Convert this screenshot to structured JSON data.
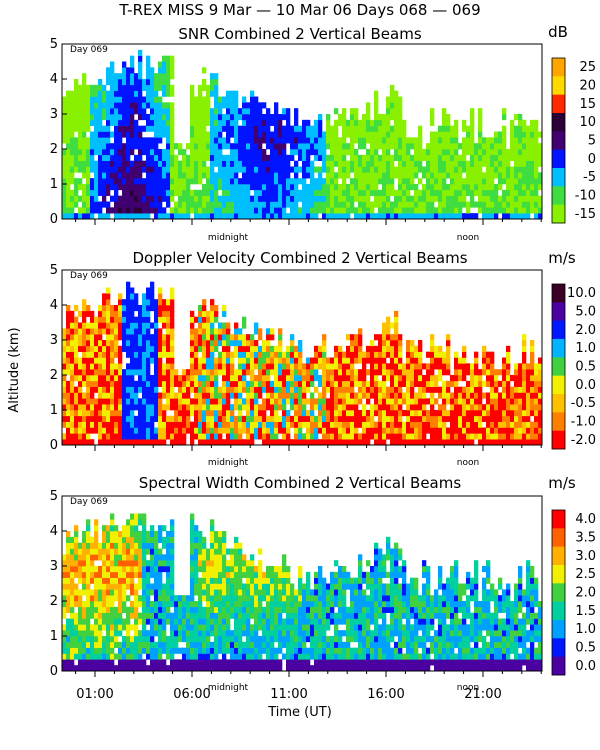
{
  "figure": {
    "title": "T-REX MISS    9 Mar — 10 Mar 06 Days 068 — 069",
    "xlabel": "Time (UT)",
    "ylabel": "Altitude (km)",
    "x_ticks": [
      "01:00",
      "06:00",
      "11:00",
      "16:00",
      "21:00"
    ],
    "x_markers": [
      "midnight",
      "noon"
    ],
    "day_label": "Day 069"
  },
  "chart_data": [
    {
      "type": "heatmap",
      "id": "snr",
      "title": "SNR Combined 2 Vertical Beams",
      "unit": "dB",
      "ylim": [
        0,
        5
      ],
      "y_ticks": [
        "0",
        "1",
        "2",
        "3",
        "4",
        "5"
      ],
      "colorbar_labels": [
        "25",
        "20",
        "15",
        "10",
        "5",
        "0",
        "-5",
        "-10",
        "-15"
      ],
      "colors": [
        "#ffa500",
        "#ffd800",
        "#ff2a00",
        "#2b0036",
        "#400070",
        "#0014ff",
        "#00bfff",
        "#3fdd3f",
        "#88f000"
      ]
    },
    {
      "type": "heatmap",
      "id": "doppler",
      "title": "Doppler Velocity Combined 2 Vertical Beams",
      "unit": "m/s",
      "ylim": [
        0,
        5
      ],
      "y_ticks": [
        "0",
        "1",
        "2",
        "3",
        "4",
        "5"
      ],
      "colorbar_labels": [
        "10.0",
        "5.0",
        "2.0",
        "1.0",
        "0.5",
        "0.0",
        "-0.5",
        "-1.0",
        "-2.0"
      ],
      "colors": [
        "#3a0026",
        "#4b00a0",
        "#0018ff",
        "#00b4ff",
        "#40d040",
        "#f0f000",
        "#ffc000",
        "#ff8000",
        "#ff0000"
      ]
    },
    {
      "type": "heatmap",
      "id": "width",
      "title": "Spectral Width Combined 2 Vertical Beams",
      "unit": "m/s",
      "ylim": [
        0,
        5
      ],
      "y_ticks": [
        "0",
        "1",
        "2",
        "3",
        "4",
        "5"
      ],
      "colorbar_labels": [
        "4.0",
        "3.5",
        "3.0",
        "2.5",
        "2.0",
        "1.5",
        "1.0",
        "0.5",
        "0.0"
      ],
      "colors": [
        "#ff0000",
        "#ff6000",
        "#ffb000",
        "#f0f000",
        "#40d040",
        "#00d0a0",
        "#00a0ff",
        "#0018ff",
        "#4b00a0"
      ]
    }
  ]
}
